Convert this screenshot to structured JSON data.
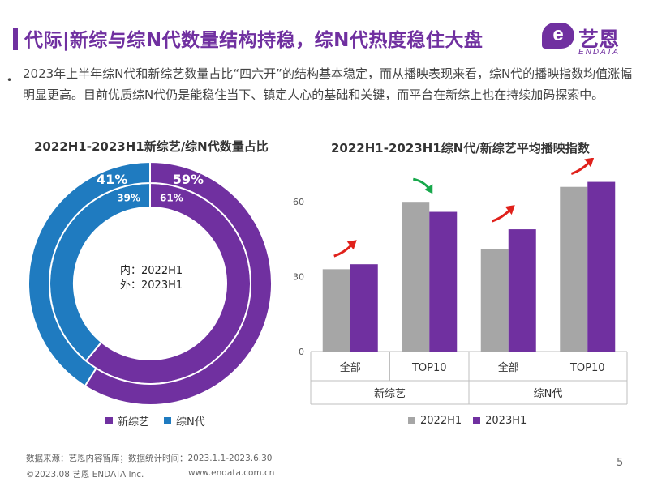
{
  "header": {
    "title": "代际|新综与综N代数量结构持稳，综N代热度稳住大盘",
    "brand_cn": "艺恩",
    "brand_en": "ENDATA",
    "brand_mark": "e"
  },
  "bullet": {
    "marker": "•",
    "text": "2023年上半年综N代和新综艺数量占比“四六开”的结构基本稳定，而从播映表现来看，综N代的播映指数均值涨幅明显更高。目前优质综N代仍是能稳住当下、镇定人心的基础和关键，而平台在新综上也在持续加码探索中。"
  },
  "colors": {
    "purple": "#7030a0",
    "blue": "#1f7bc0",
    "gray": "#a6a6a6",
    "arrow_red": "#e0211b",
    "arrow_green": "#17a84b"
  },
  "chart_data": [
    {
      "type": "pie",
      "variant": "donut-nested",
      "title": "2022H1-2023H1新综艺/综N代数量占比",
      "center_label_inner": "内：2022H1",
      "center_label_outer": "外：2023H1",
      "series": [
        {
          "name": "2022H1",
          "ring": "inner",
          "labels": [
            "新综艺",
            "综N代"
          ],
          "values": [
            61,
            39
          ],
          "display": [
            "61%",
            "39%"
          ]
        },
        {
          "name": "2023H1",
          "ring": "outer",
          "labels": [
            "新综艺",
            "综N代"
          ],
          "values": [
            59,
            41
          ],
          "display": [
            "59%",
            "41%"
          ]
        }
      ],
      "legend": [
        "新综艺",
        "综N代"
      ],
      "legend_position": "bottom"
    },
    {
      "type": "bar",
      "title": "2022H1-2023H1综N代/新综艺平均播映指数",
      "categories": [
        "全部",
        "TOP10",
        "全部",
        "TOP10"
      ],
      "groups": [
        "新综艺",
        "综N代"
      ],
      "series": [
        {
          "name": "2022H1",
          "values": [
            33,
            60,
            41,
            66
          ]
        },
        {
          "name": "2023H1",
          "values": [
            35,
            56,
            49,
            68
          ]
        }
      ],
      "trend": [
        "up",
        "down",
        "up",
        "up"
      ],
      "yticks": [
        0,
        30,
        60
      ],
      "ylim": [
        0,
        75
      ],
      "legend": [
        "2022H1",
        "2023H1"
      ],
      "legend_position": "bottom"
    }
  ],
  "footer": {
    "source": "数据来源：艺恩内容智库；数据统计时间：2023.1.1-2023.6.30",
    "copyright": "©2023.08 艺恩 ENDATA Inc.",
    "url": "www.endata.com.cn",
    "page": "5"
  }
}
